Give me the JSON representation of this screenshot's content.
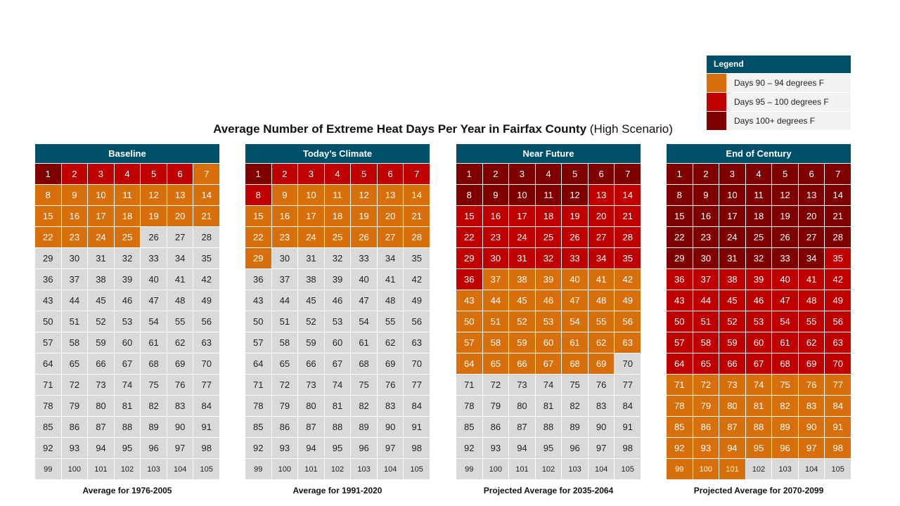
{
  "colors": {
    "header": "#00506a",
    "none": "#d9d9d9",
    "orange": "#d86f0a",
    "red": "#c00000",
    "dark": "#800000"
  },
  "legend": {
    "title": "Legend",
    "items": [
      {
        "key": "orange",
        "label": "Days 90 – 94 degrees F"
      },
      {
        "key": "red",
        "label": "Days 95 – 100 degrees F"
      },
      {
        "key": "dark",
        "label": "Days 100+ degrees F"
      }
    ]
  },
  "title": {
    "main": "Average Number of Extreme Heat Days Per Year in Fairfax County",
    "sub": "(High Scenario)"
  },
  "chart_data": {
    "type": "heatmap",
    "title": "Average Number of Extreme Heat Days Per Year in Fairfax County (High Scenario)",
    "unit": "days per year",
    "total_cells": 105,
    "columns_per_row": 7,
    "categories_legend": [
      "Days 90 – 94 degrees F",
      "Days 95 – 100 degrees F",
      "Days 100+ degrees F"
    ],
    "series": [
      {
        "name": "Baseline",
        "period": "Average for 1976-2005",
        "days_100_plus": 1,
        "days_95_100": 5,
        "days_90_94": 19,
        "total": 25
      },
      {
        "name": "Today’s Climate",
        "period": "Average for 1991-2020",
        "days_100_plus": 1,
        "days_95_100": 7,
        "days_90_94": 21,
        "total": 29
      },
      {
        "name": "Near Future",
        "period": "Projected Average for 2035-2064",
        "days_100_plus": 12,
        "days_95_100": 24,
        "days_90_94": 33,
        "total": 69
      },
      {
        "name": "End of Century",
        "period": "Projected Average for 2070-2099",
        "days_100_plus": 34,
        "days_95_100": 36,
        "days_90_94": 31,
        "total": 101
      }
    ]
  }
}
